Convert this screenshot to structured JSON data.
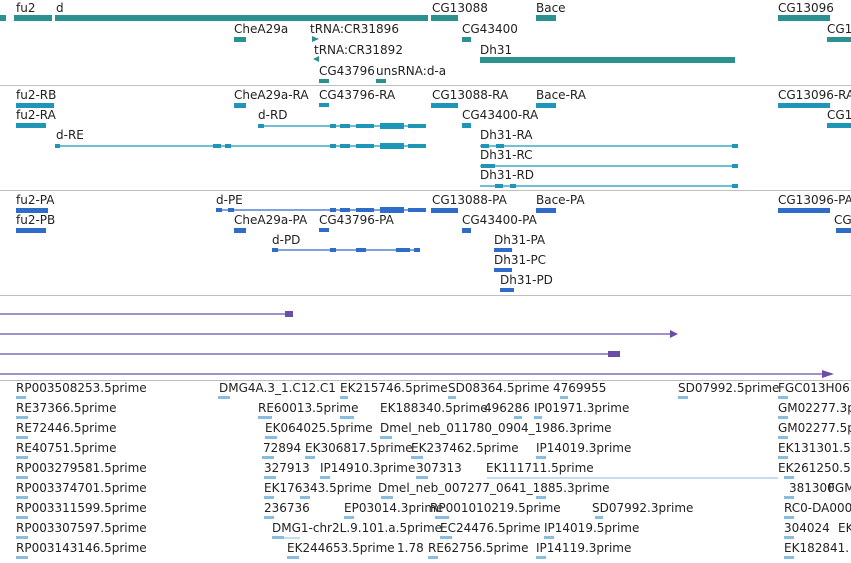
{
  "colors": {
    "gene": "#2a9090",
    "transcript": "#1f96b8",
    "cds": "#2e6cc8",
    "purple": "#6a4ea6",
    "est": "#88bde0",
    "separator": "#bfbfbf"
  },
  "genes": {
    "labels": [
      "fu2",
      "d",
      "CG13088",
      "Bace",
      "CG13096",
      "ChеA29a",
      "tRNA:CR31896",
      "CG43400",
      "CG1",
      "tRNA:CR31892",
      "Dh31",
      "CG43796",
      "unsRNA:d-a"
    ]
  },
  "transcripts": {
    "labels": [
      "fu2-RB",
      "fu2-RA",
      "d-RE",
      "ChеA29a-RA",
      "CG43796-RA",
      "CG13088-RA",
      "Bace-RA",
      "CG13096-RA",
      "d-RD",
      "CG43400-RA",
      "CG1",
      "Dh31-RA",
      "Dh31-RC",
      "Dh31-RD"
    ]
  },
  "proteins": {
    "labels": [
      "fu2-PA",
      "fu2-PB",
      "d-PE",
      "ChеA29a-PA",
      "CG43796-PA",
      "CG13088-PA",
      "Bace-PA",
      "CG13096-PA",
      "CG43400-PA",
      "CG",
      "d-PD",
      "Dh31-PA",
      "Dh31-PC",
      "Dh31-PD"
    ]
  },
  "ests": {
    "labels": [
      "RP003508253.5prime",
      "DMG4A.3_1.C12.C1",
      "EK215746.5prime",
      "SD08364.5prime",
      "4769955",
      "SD07992.5prime",
      "FGC013H06.",
      "RE37366.5prime",
      "RE60013.5prime",
      "EK188340.5prime",
      "496286",
      "IP01971.3prime",
      "GM02277.3p",
      "RE72446.5prime",
      "EK064025.5prime",
      "Dmel_neb_011780_0904_1986.3prime",
      "GM02277.5p",
      "RE40751.5prime",
      "72894",
      "EK306817.5prime",
      "EK237462.5prime",
      "IP14019.3prime",
      "EK131301.5",
      "RP003279581.5prime",
      "327913",
      "IP14910.3prime",
      "307313",
      "EK111711.5prime",
      "EK261250.5",
      "RP003374701.5prime",
      "EK176343.5prime",
      "Dmel_neb_007277_0641_1885.3prime",
      "381300",
      "FGM",
      "RP003311599.5prime",
      "236736",
      "EP03014.3prime",
      "RP001010219.5prime",
      "SD07992.3prime",
      "RC0-DA000",
      "RP003307597.5prime",
      "DMG1-chr2L.9.101.a.5prime",
      "EC24476.5prime",
      "IP14019.5prime",
      "304024",
      "EK",
      "RP003143146.5prime",
      "EK244653.5prime",
      "1.78",
      "RE62756.5prime",
      "IP14119.3prime",
      "EK182841."
    ]
  }
}
